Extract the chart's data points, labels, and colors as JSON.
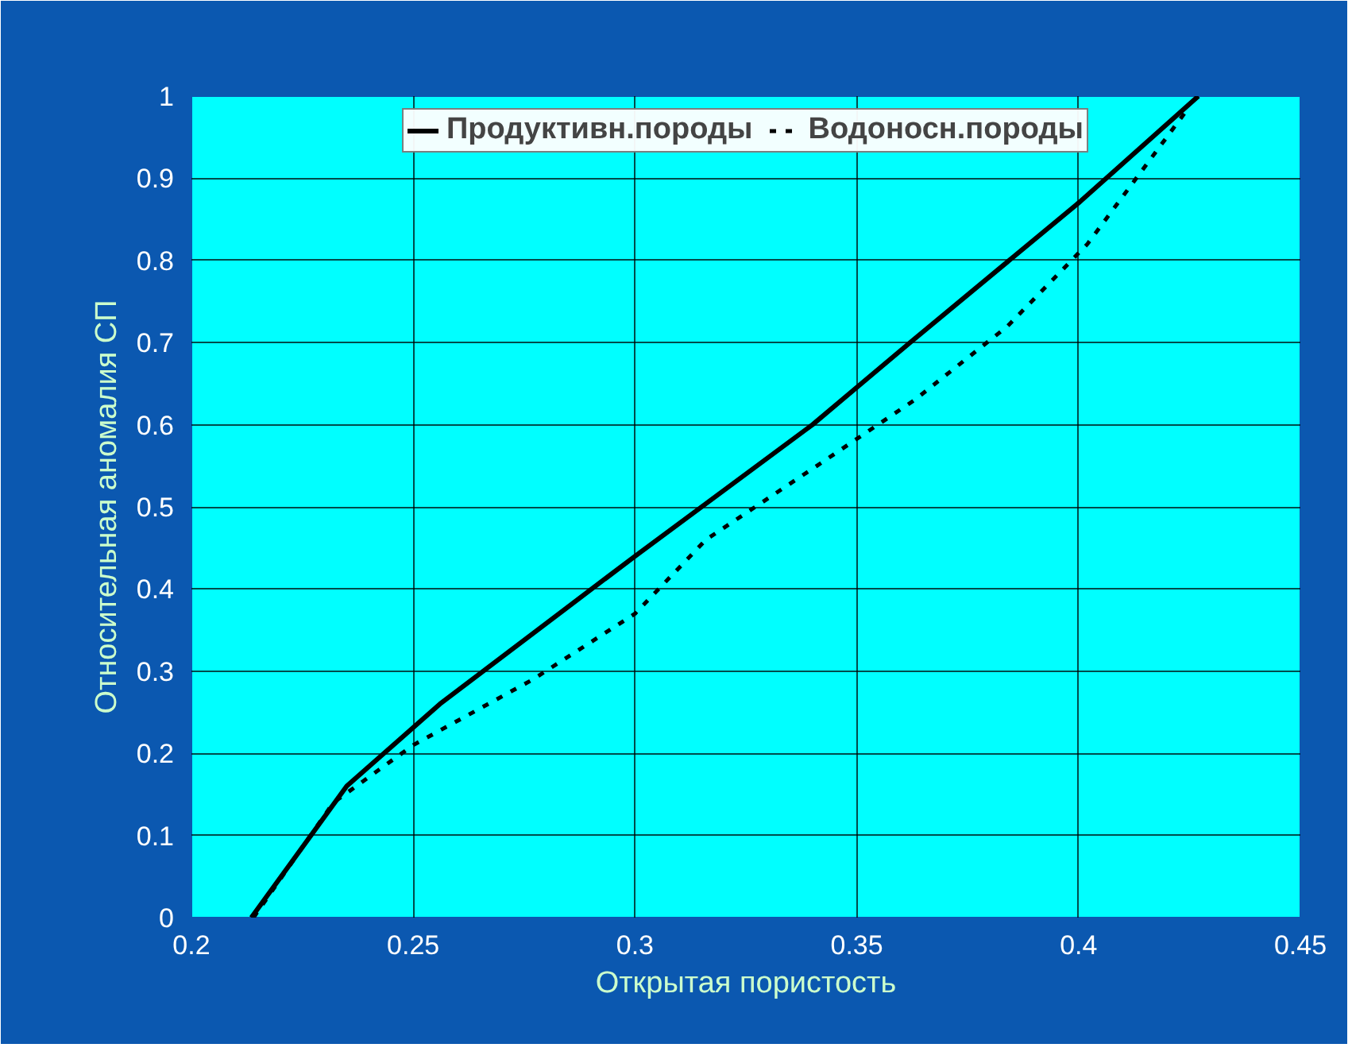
{
  "chart_data": {
    "type": "line",
    "xlabel": "Открытая пористость",
    "ylabel": "Относительная аномалия СП",
    "xlim": [
      0.2,
      0.45
    ],
    "xticks": [
      0.2,
      0.25,
      0.3,
      0.35,
      0.4,
      0.45
    ],
    "ylim": [
      0,
      1
    ],
    "yticks": [
      0,
      0.1,
      0.2,
      0.3,
      0.4,
      0.5,
      0.6,
      0.7,
      0.8,
      0.9,
      1
    ],
    "grid": true,
    "legend": "top",
    "series": [
      {
        "name": "Продуктивн.породы",
        "color": "#000000",
        "line_style": "solid",
        "x": [
          0.2135,
          0.235,
          0.256,
          0.3,
          0.34,
          0.362,
          0.4,
          0.427
        ],
        "values": [
          0,
          0.16,
          0.26,
          0.44,
          0.6,
          0.7,
          0.87,
          1.0
        ]
      },
      {
        "name": "Водоносн.породы",
        "color": "#000000",
        "line_style": "dashed",
        "x": [
          0.214,
          0.232,
          0.25,
          0.277,
          0.3,
          0.316,
          0.341,
          0.363,
          0.384,
          0.402,
          0.424
        ],
        "values": [
          0,
          0.14,
          0.21,
          0.29,
          0.37,
          0.46,
          0.55,
          0.63,
          0.72,
          0.82,
          0.98
        ]
      }
    ]
  }
}
